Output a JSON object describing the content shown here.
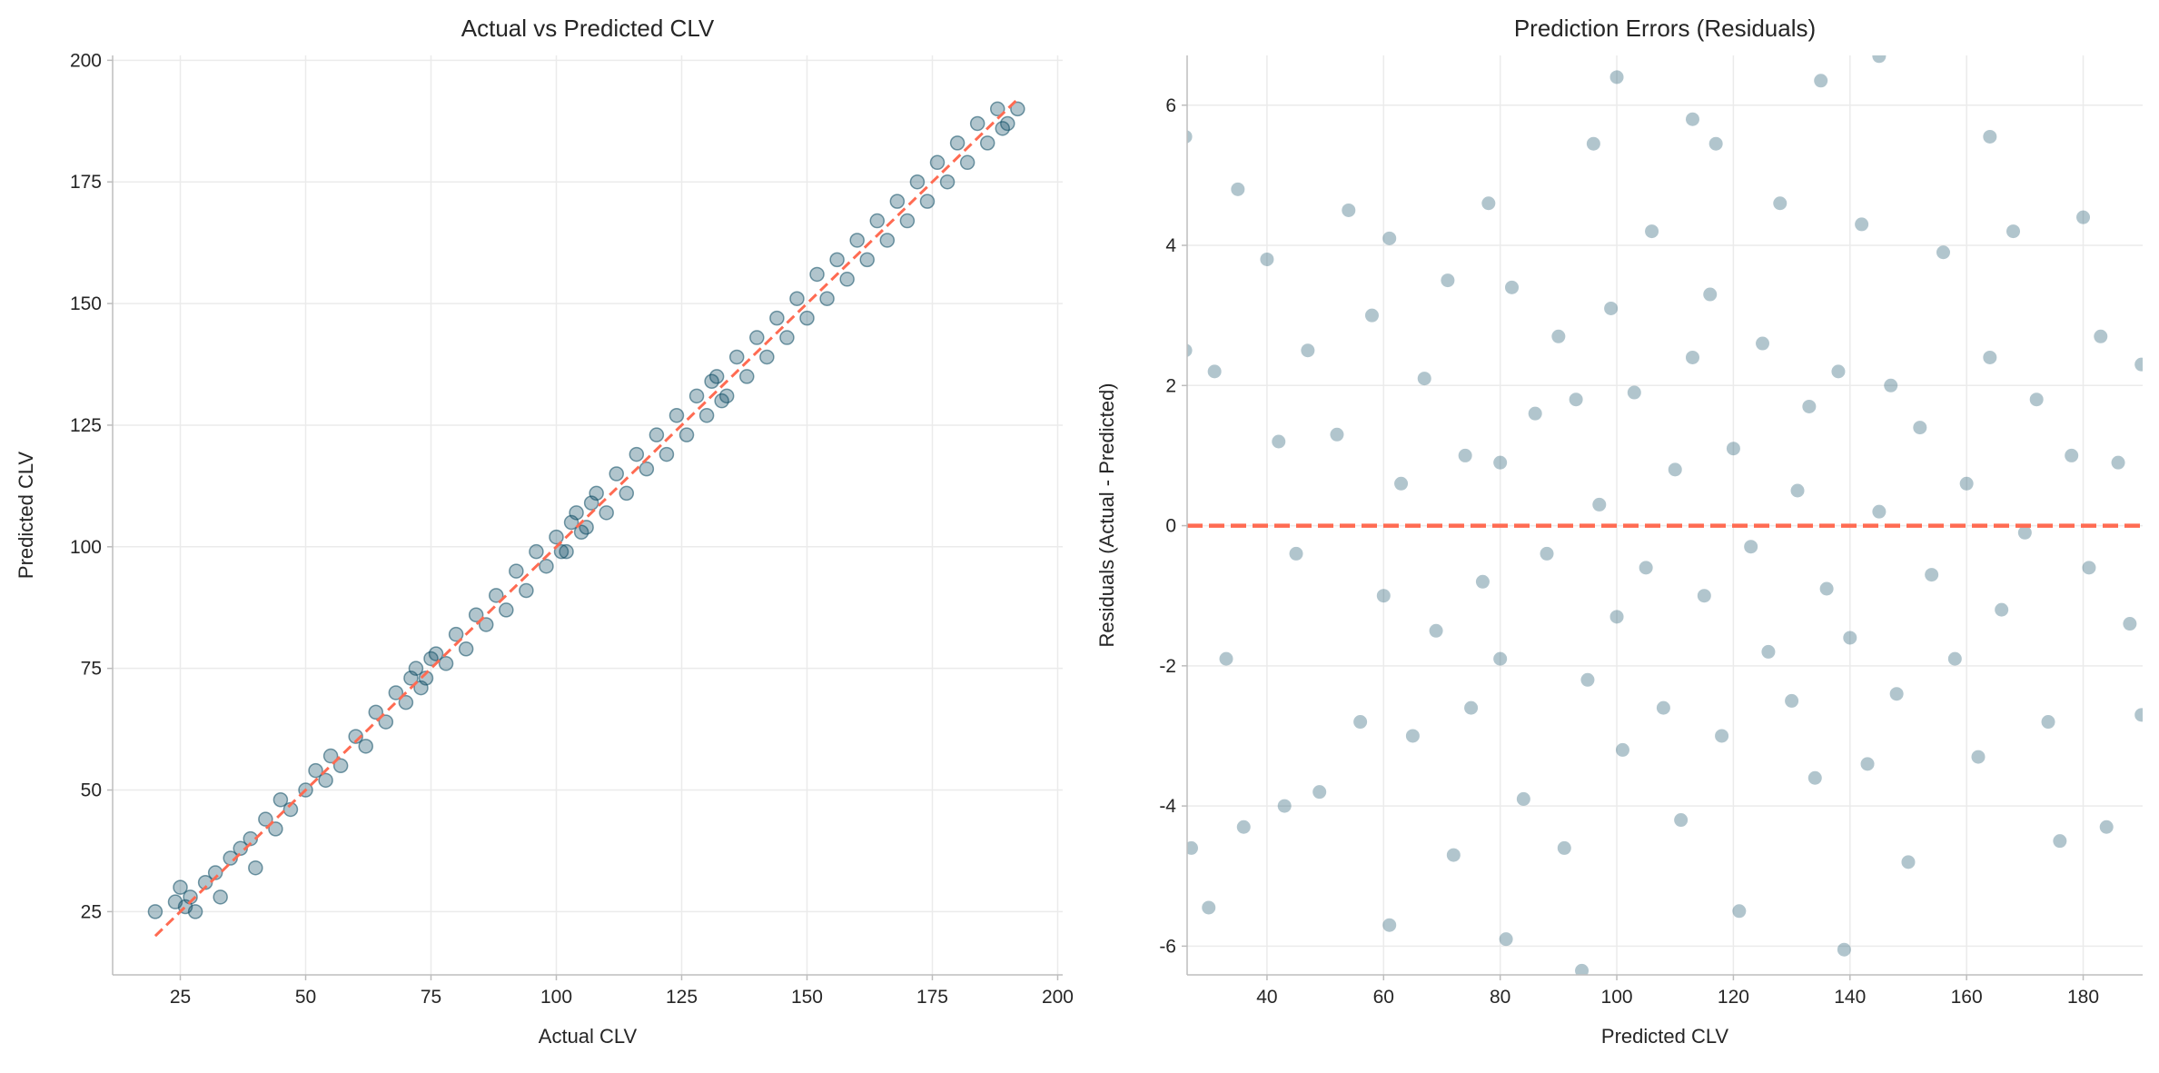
{
  "colors": {
    "points": "#0b4a63",
    "reference_line": "#ff6b52",
    "grid": "#ebebeb",
    "spine": "#bdbdbd"
  },
  "chart_data": [
    {
      "type": "scatter",
      "title": "Actual vs Predicted CLV",
      "xlabel": "Actual CLV",
      "ylabel": "Predicted CLV",
      "xlim": [
        11.5,
        201
      ],
      "ylim": [
        12,
        201
      ],
      "xticks": [
        25,
        50,
        75,
        100,
        125,
        150,
        175,
        200
      ],
      "yticks": [
        25,
        50,
        75,
        100,
        125,
        150,
        175,
        200
      ],
      "grid": true,
      "marker_edge": true,
      "reference_line": {
        "style": "dashed",
        "from": [
          20,
          20
        ],
        "to": [
          192,
          192
        ]
      },
      "points": [
        [
          20,
          25
        ],
        [
          24,
          27
        ],
        [
          25,
          30
        ],
        [
          26,
          26
        ],
        [
          27,
          28
        ],
        [
          28,
          25
        ],
        [
          30,
          31
        ],
        [
          32,
          33
        ],
        [
          33,
          28
        ],
        [
          35,
          36
        ],
        [
          37,
          38
        ],
        [
          39,
          40
        ],
        [
          40,
          34
        ],
        [
          42,
          44
        ],
        [
          44,
          42
        ],
        [
          45,
          48
        ],
        [
          47,
          46
        ],
        [
          50,
          50
        ],
        [
          52,
          54
        ],
        [
          54,
          52
        ],
        [
          55,
          57
        ],
        [
          57,
          55
        ],
        [
          60,
          61
        ],
        [
          62,
          59
        ],
        [
          64,
          66
        ],
        [
          66,
          64
        ],
        [
          68,
          70
        ],
        [
          70,
          68
        ],
        [
          71,
          73
        ],
        [
          72,
          75
        ],
        [
          73,
          71
        ],
        [
          74,
          73
        ],
        [
          75,
          77
        ],
        [
          76,
          78
        ],
        [
          78,
          76
        ],
        [
          80,
          82
        ],
        [
          82,
          79
        ],
        [
          84,
          86
        ],
        [
          86,
          84
        ],
        [
          88,
          90
        ],
        [
          90,
          87
        ],
        [
          92,
          95
        ],
        [
          94,
          91
        ],
        [
          96,
          99
        ],
        [
          98,
          96
        ],
        [
          100,
          102
        ],
        [
          101,
          99
        ],
        [
          102,
          99
        ],
        [
          103,
          105
        ],
        [
          104,
          107
        ],
        [
          105,
          103
        ],
        [
          106,
          104
        ],
        [
          107,
          109
        ],
        [
          108,
          111
        ],
        [
          110,
          107
        ],
        [
          112,
          115
        ],
        [
          114,
          111
        ],
        [
          116,
          119
        ],
        [
          118,
          116
        ],
        [
          120,
          123
        ],
        [
          122,
          119
        ],
        [
          124,
          127
        ],
        [
          126,
          123
        ],
        [
          128,
          131
        ],
        [
          130,
          127
        ],
        [
          131,
          134
        ],
        [
          132,
          135
        ],
        [
          133,
          130
        ],
        [
          134,
          131
        ],
        [
          136,
          139
        ],
        [
          138,
          135
        ],
        [
          140,
          143
        ],
        [
          142,
          139
        ],
        [
          144,
          147
        ],
        [
          146,
          143
        ],
        [
          148,
          151
        ],
        [
          150,
          147
        ],
        [
          152,
          156
        ],
        [
          154,
          151
        ],
        [
          156,
          159
        ],
        [
          158,
          155
        ],
        [
          160,
          163
        ],
        [
          162,
          159
        ],
        [
          164,
          167
        ],
        [
          166,
          163
        ],
        [
          168,
          171
        ],
        [
          170,
          167
        ],
        [
          172,
          175
        ],
        [
          174,
          171
        ],
        [
          176,
          179
        ],
        [
          178,
          175
        ],
        [
          180,
          183
        ],
        [
          182,
          179
        ],
        [
          184,
          187
        ],
        [
          186,
          183
        ],
        [
          188,
          190
        ],
        [
          190,
          187
        ],
        [
          192,
          190
        ],
        [
          189,
          186
        ]
      ]
    },
    {
      "type": "scatter",
      "title": "Prediction Errors (Residuals)",
      "xlabel": "Predicted CLV",
      "ylabel": "Residuals (Actual - Predicted)",
      "xlim": [
        26.3,
        190.2
      ],
      "ylim": [
        -6.41,
        6.71
      ],
      "xticks": [
        40,
        60,
        80,
        100,
        120,
        140,
        160,
        180
      ],
      "yticks": [
        -6,
        -4,
        -2,
        0,
        2,
        4,
        6
      ],
      "grid": true,
      "marker_edge": false,
      "reference_line": {
        "style": "dashed",
        "y": 0
      },
      "points": [
        [
          26,
          5.55
        ],
        [
          35,
          4.8
        ],
        [
          100,
          6.4
        ],
        [
          135,
          6.35
        ],
        [
          145,
          6.7
        ],
        [
          94,
          -6.35
        ],
        [
          139,
          -6.05
        ],
        [
          81,
          -5.9
        ],
        [
          61,
          -5.7
        ],
        [
          30,
          -5.45
        ],
        [
          113,
          5.8
        ],
        [
          117,
          5.45
        ],
        [
          96,
          5.45
        ],
        [
          164,
          5.55
        ],
        [
          26,
          2.5
        ],
        [
          27,
          -4.6
        ],
        [
          190,
          2.3
        ],
        [
          190,
          -2.7
        ],
        [
          188,
          -1.4
        ],
        [
          31,
          2.2
        ],
        [
          33,
          -1.9
        ],
        [
          36,
          -4.3
        ],
        [
          40,
          3.8
        ],
        [
          42,
          1.2
        ],
        [
          43,
          -4.0
        ],
        [
          45,
          -0.4
        ],
        [
          47,
          2.5
        ],
        [
          49,
          -3.8
        ],
        [
          52,
          1.3
        ],
        [
          54,
          4.5
        ],
        [
          56,
          -2.8
        ],
        [
          58,
          3.0
        ],
        [
          60,
          -1.0
        ],
        [
          61,
          4.1
        ],
        [
          63,
          0.6
        ],
        [
          65,
          -3.0
        ],
        [
          67,
          2.1
        ],
        [
          69,
          -1.5
        ],
        [
          71,
          3.5
        ],
        [
          72,
          -4.7
        ],
        [
          74,
          1.0
        ],
        [
          75,
          -2.6
        ],
        [
          77,
          -0.8
        ],
        [
          78,
          4.6
        ],
        [
          80,
          0.9
        ],
        [
          80,
          -1.9
        ],
        [
          82,
          3.4
        ],
        [
          84,
          -3.9
        ],
        [
          86,
          1.6
        ],
        [
          88,
          -0.4
        ],
        [
          90,
          2.7
        ],
        [
          91,
          -4.6
        ],
        [
          93,
          1.8
        ],
        [
          95,
          -2.2
        ],
        [
          97,
          0.3
        ],
        [
          99,
          3.1
        ],
        [
          100,
          -1.3
        ],
        [
          101,
          -3.2
        ],
        [
          103,
          1.9
        ],
        [
          105,
          -0.6
        ],
        [
          106,
          4.2
        ],
        [
          108,
          -2.6
        ],
        [
          110,
          0.8
        ],
        [
          111,
          -4.2
        ],
        [
          113,
          2.4
        ],
        [
          115,
          -1.0
        ],
        [
          116,
          3.3
        ],
        [
          118,
          -3.0
        ],
        [
          120,
          1.1
        ],
        [
          121,
          -5.5
        ],
        [
          123,
          -0.3
        ],
        [
          125,
          2.6
        ],
        [
          126,
          -1.8
        ],
        [
          128,
          4.6
        ],
        [
          130,
          -2.5
        ],
        [
          131,
          0.5
        ],
        [
          133,
          1.7
        ],
        [
          134,
          -3.6
        ],
        [
          136,
          -0.9
        ],
        [
          138,
          2.2
        ],
        [
          140,
          -1.6
        ],
        [
          142,
          4.3
        ],
        [
          143,
          -3.4
        ],
        [
          145,
          0.2
        ],
        [
          147,
          2.0
        ],
        [
          148,
          -2.4
        ],
        [
          150,
          -4.8
        ],
        [
          152,
          1.4
        ],
        [
          154,
          -0.7
        ],
        [
          156,
          3.9
        ],
        [
          158,
          -1.9
        ],
        [
          160,
          0.6
        ],
        [
          162,
          -3.3
        ],
        [
          164,
          2.4
        ],
        [
          166,
          -1.2
        ],
        [
          168,
          4.2
        ],
        [
          170,
          -0.1
        ],
        [
          172,
          1.8
        ],
        [
          174,
          -2.8
        ],
        [
          176,
          -4.5
        ],
        [
          178,
          1.0
        ],
        [
          180,
          4.4
        ],
        [
          181,
          -0.6
        ],
        [
          183,
          2.7
        ],
        [
          184,
          -4.3
        ],
        [
          186,
          0.9
        ]
      ]
    }
  ]
}
